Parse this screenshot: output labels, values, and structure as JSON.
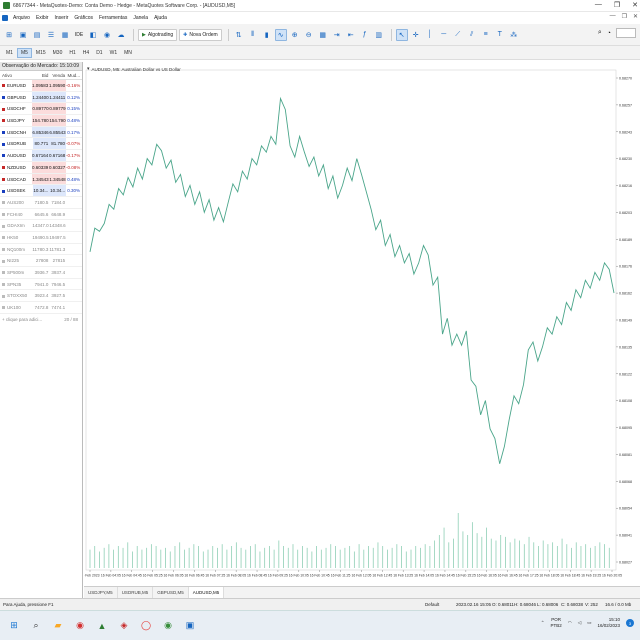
{
  "window": {
    "title": "68677344 - MetaQuotes-Demo: Conta Demo - Hedge - MetaQuotes Software Corp. - [AUDUSD,M5]",
    "controls": [
      "—",
      "❐",
      "✕"
    ]
  },
  "menu": {
    "items": [
      "Arquivo",
      "Exibir",
      "Inserir",
      "Gráficos",
      "Ferramentas",
      "Janela",
      "Ajuda"
    ]
  },
  "toolbar": {
    "algotrading_label": "Algotrading",
    "new_order_label": "Nova Ordem",
    "ide_label": "IDE"
  },
  "timeframes": {
    "items": [
      "M1",
      "M5",
      "M15",
      "M30",
      "H1",
      "H4",
      "D1",
      "W1",
      "MN"
    ],
    "active": "M5"
  },
  "market_watch": {
    "title": "Observação do Mercado: 15:10:09",
    "headers": {
      "symbol": "Ativo",
      "bid": "Bid",
      "ask": "Venda",
      "change": "Mud..."
    },
    "rows": [
      {
        "symbol": "EURUSD",
        "bid": "1.09583",
        "ask": "1.09590",
        "change": "-0.16%",
        "state": "dn"
      },
      {
        "symbol": "GBPUSD",
        "bid": "1.24400",
        "ask": "1.24411",
        "change": "0.12%",
        "state": "up"
      },
      {
        "symbol": "USDCHF",
        "bid": "0.89770",
        "ask": "0.89779",
        "change": "0.15%",
        "state": "dn"
      },
      {
        "symbol": "USDJPY",
        "bid": "154.780",
        "ask": "154.790",
        "change": "0.48%",
        "state": "dn"
      },
      {
        "symbol": "USDCNH",
        "bid": "6.85346",
        "ask": "6.85543",
        "change": "0.17%",
        "state": "up"
      },
      {
        "symbol": "USDRUB",
        "bid": "80.771",
        "ask": "81.780",
        "change": "-0.07%",
        "state": "up"
      },
      {
        "symbol": "AUDUSD",
        "bid": "0.67164",
        "ask": "0.67168",
        "change": "-0.17%",
        "state": "up"
      },
      {
        "symbol": "NZDUSD",
        "bid": "0.60339",
        "ask": "0.60327",
        "change": "-0.08%",
        "state": "dn"
      },
      {
        "symbol": "USDCAD",
        "bid": "1.34543",
        "ask": "1.34548",
        "change": "0.48%",
        "state": "dn"
      },
      {
        "symbol": "USDSEK",
        "bid": "10.34...",
        "ask": "10.34...",
        "change": "0.30%",
        "state": "up"
      },
      {
        "symbol": "AUS200",
        "bid": "7180.5",
        "ask": "7184.0",
        "change": "",
        "state": "muted"
      },
      {
        "symbol": "FCHI40",
        "bid": "6645.6",
        "ask": "6648.9",
        "change": "",
        "state": "muted"
      },
      {
        "symbol": "GDAXIm",
        "bid": "14347.0",
        "ask": "14348.6",
        "change": "",
        "state": "muted"
      },
      {
        "symbol": "HK50",
        "bid": "19490.5",
        "ask": "19497.5",
        "change": "",
        "state": "muted"
      },
      {
        "symbol": "NQ100m",
        "bid": "11780.3",
        "ask": "11781.3",
        "change": "",
        "state": "muted"
      },
      {
        "symbol": "NI225",
        "bid": "27808",
        "ask": "27815",
        "change": "",
        "state": "muted"
      },
      {
        "symbol": "SP500m",
        "bid": "3936.7",
        "ask": "3937.4",
        "change": "",
        "state": "muted"
      },
      {
        "symbol": "SPN35",
        "bid": "7941.0",
        "ask": "7946.5",
        "change": "",
        "state": "muted"
      },
      {
        "symbol": "STOXX50",
        "bid": "3923.4",
        "ask": "3927.5",
        "change": "",
        "state": "muted"
      },
      {
        "symbol": "UK100",
        "bid": "7472.8",
        "ask": "7474.1",
        "change": "",
        "state": "muted"
      }
    ],
    "add_label": "+ clique para adici...",
    "count_label": "20 / 88",
    "tabs": [
      "Ativos",
      "Detalhes",
      "Negociação",
      "Ticks"
    ],
    "active_tab": "Ativos"
  },
  "chart": {
    "label": "AUDUSD, M5:  Australian Dollar vs US Dollar",
    "tabs": [
      "USDJPY,M5",
      "USDRUB,M5",
      "GBPUSD,M5",
      "AUDUSD,M5"
    ],
    "active_tab": "AUDUSD,M5"
  },
  "chart_data": {
    "type": "line",
    "title": "AUDUSD, M5:  Australian Dollar vs US Dollar",
    "ylim": [
      0.6801,
      0.6828
    ],
    "y_ticks": [
      "0.68270",
      "0.68257",
      "0.68243",
      "0.68230",
      "0.68216",
      "0.68203",
      "0.68189",
      "0.68176",
      "0.68162",
      "0.68149",
      "0.68135",
      "0.68122",
      "0.68108",
      "0.68095",
      "0.68081",
      "0.68068",
      "0.68054",
      "0.68041",
      "0.68027"
    ],
    "x_ticks": [
      "16 Feb 2023",
      "16 Feb 04:05",
      "16 Feb 04:45",
      "16 Feb 05:25",
      "16 Feb 06:05",
      "16 Feb 06:45",
      "16 Feb 07:25",
      "16 Feb 08:05",
      "16 Feb 08:45",
      "16 Feb 09:25",
      "16 Feb 10:05",
      "16 Feb 10:45",
      "16 Feb 11:25",
      "16 Feb 12:05",
      "16 Feb 12:45",
      "16 Feb 13:25",
      "16 Feb 14:05",
      "16 Feb 14:45",
      "16 Feb 15:25",
      "16 Feb 16:05",
      "16 Feb 16:45",
      "16 Feb 17:25",
      "16 Feb 18:05",
      "16 Feb 18:45",
      "16 Feb 19:25",
      "16 Feb 20:05"
    ],
    "series": [
      {
        "values": [
          0.68165,
          0.6818,
          0.68178,
          0.68183,
          0.68195,
          0.68192,
          0.68205,
          0.68201,
          0.68212,
          0.68206,
          0.68218,
          0.68211,
          0.68224,
          0.6822,
          0.68233,
          0.68229,
          0.68218,
          0.68223,
          0.68209,
          0.68214,
          0.682,
          0.68207,
          0.68195,
          0.68203,
          0.6819,
          0.68198,
          0.68185,
          0.68193,
          0.68184,
          0.68196,
          0.68208,
          0.68203,
          0.68216,
          0.68211,
          0.68224,
          0.6822,
          0.68232,
          0.68228,
          0.68238,
          0.68233,
          0.68262,
          0.68255,
          0.68232,
          0.68225,
          0.68238,
          0.68228,
          0.68219,
          0.68225,
          0.68213,
          0.6822,
          0.68205,
          0.68213,
          0.68199,
          0.68207,
          0.68218,
          0.6821,
          0.68224,
          0.68214,
          0.68203,
          0.68192,
          0.68179,
          0.68185,
          0.68169,
          0.68176,
          0.68162,
          0.68169,
          0.68158,
          0.68164,
          0.68151,
          0.68158,
          0.68169,
          0.68163,
          0.68144,
          0.68149,
          0.68113,
          0.68123,
          0.68106,
          0.68113,
          0.68106,
          0.68115,
          0.68084,
          0.6808,
          0.68062,
          0.68071,
          0.68053,
          0.68047,
          0.68031,
          0.68042,
          0.68059,
          0.68074,
          0.68069,
          0.68081,
          0.68103,
          0.68108,
          0.68096,
          0.68105,
          0.68117,
          0.68113,
          0.68124,
          0.68119,
          0.68133,
          0.68128,
          0.68141,
          0.68136,
          0.68147,
          0.68142,
          0.68152,
          0.68147,
          0.68158,
          0.68154,
          0.68139
        ]
      }
    ],
    "volume": [
      10,
      12,
      9,
      11,
      13,
      10,
      12,
      11,
      14,
      9,
      12,
      10,
      11,
      13,
      12,
      10,
      11,
      9,
      12,
      14,
      10,
      11,
      13,
      12,
      9,
      10,
      12,
      11,
      13,
      10,
      12,
      14,
      11,
      10,
      12,
      13,
      9,
      11,
      12,
      10,
      15,
      12,
      11,
      13,
      10,
      12,
      11,
      9,
      12,
      10,
      11,
      13,
      12,
      10,
      11,
      12,
      9,
      13,
      10,
      12,
      11,
      14,
      12,
      10,
      11,
      13,
      12,
      9,
      10,
      12,
      11,
      13,
      12,
      15,
      18,
      22,
      14,
      16,
      30,
      20,
      18,
      25,
      19,
      17,
      22,
      16,
      15,
      18,
      17,
      14,
      16,
      15,
      13,
      17,
      14,
      12,
      15,
      13,
      14,
      12,
      16,
      13,
      11,
      14,
      12,
      13,
      11,
      12,
      14,
      13,
      11
    ]
  },
  "status": {
    "help": "Para Ajuda, pressione F1",
    "profile": "Default",
    "datetime": "2023.02.16 15:05",
    "open": "O: 0.68011",
    "high": "H: 0.68046",
    "low": "L: 0.68006",
    "close": "C: 0.68038",
    "volume": "V: 252",
    "traffic": "16.6 / 0.0 Mb"
  },
  "taskbar": {
    "lang": "POR",
    "lang2": "PTB2",
    "time": "15:10",
    "date": "16/02/2023",
    "badge": "3"
  },
  "colors": {
    "line": "#4aa58a",
    "volume": "#8fcfb5",
    "grid": "#eaf3ee"
  }
}
